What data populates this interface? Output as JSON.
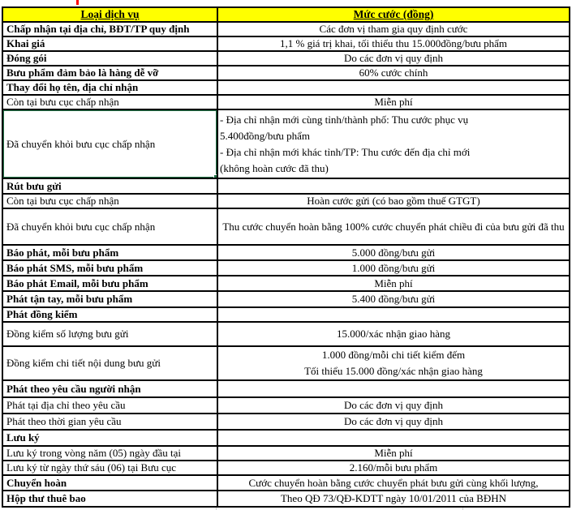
{
  "colors": {
    "header_bg": "#FFFF00",
    "selection_green": "#217346",
    "grid_black": "#000000",
    "red_mark": "#FF0000",
    "faint_grid": "#D0D0D0"
  },
  "table": {
    "columns": [
      {
        "label": "Loại dịch vụ"
      },
      {
        "label": "Mức cước (đồng)"
      }
    ],
    "rows": [
      {
        "service": "Chấp nhận tại địa chỉ, BĐT/TP quy định",
        "fee": "Các đơn vị tham gia quy định cước",
        "bold": true
      },
      {
        "service": "Khai giá",
        "fee": "1,1 % giá trị khai, tối thiểu thu 15.000đồng/bưu phẩm",
        "bold": true
      },
      {
        "service": "Đóng gói",
        "fee": "Do các đơn vị quy định",
        "bold": true
      },
      {
        "service": "Bưu phẩm đảm bảo là hàng dễ vỡ",
        "fee": "60% cước chính",
        "bold": true
      },
      {
        "service": "Thay đổi họ tên, địa chỉ nhận",
        "fee": "",
        "bold": true
      },
      {
        "service": "Còn tại bưu cục chấp nhận",
        "fee": "Miễn phí",
        "bold": false
      },
      {
        "service": "Đã chuyển khỏi bưu cục chấp nhận",
        "fee": "- Địa chỉ nhận mới cùng tỉnh/thành phố: Thu cước phục vụ\n5.400đồng/bưu phẩm\n- Địa chỉ nhận mới khác tỉnh/TP: Thu cước đến địa chỉ mới\n(không hoàn cước đã thu)",
        "bold": false,
        "fee_align": "left",
        "selected": true
      },
      {
        "service": "Rút bưu gửi",
        "fee": "",
        "bold": true
      },
      {
        "service": "Còn tại bưu cục chấp nhận",
        "fee": "Hoàn cước gửi (có bao gồm thuế GTGT)",
        "bold": false
      },
      {
        "service": "Đã chuyển khỏi bưu cục chấp nhận",
        "fee": "Thu cước chuyển hoàn bằng 100% cước chuyển phát chiều đi của bưu gửi đã thu",
        "bold": false
      },
      {
        "service": "Báo phát, mỗi bưu phẩm",
        "fee": "5.000 đồng/bưu gửi",
        "bold": true
      },
      {
        "service": "Báo phát SMS, mỗi bưu phẩm",
        "fee": "1.000 đồng/bưu gửi",
        "bold": true
      },
      {
        "service": "Báo phát Email, mỗi bưu phẩm",
        "fee": "Miễn phí",
        "bold": true
      },
      {
        "service": "Phát tận tay, mỗi bưu phẩm",
        "fee": "5.400 đồng/bưu gửi",
        "bold": true
      },
      {
        "service": "Phát đồng kiểm",
        "fee": "",
        "bold": true
      },
      {
        "service": "Đồng kiểm số lượng bưu gửi",
        "fee": "15.000/xác nhận giao hàng",
        "bold": false
      },
      {
        "service": "Đồng kiểm chi tiết nội dung bưu gửi",
        "fee": "1.000 đồng/mỗi chi tiết kiểm đếm\nTối thiểu 15.000 đồng/xác nhận giao hàng",
        "bold": false
      },
      {
        "service": "Phát theo yêu cầu người nhận",
        "fee": "",
        "bold": true
      },
      {
        "service": "Phát tại địa chỉ theo yêu cầu",
        "fee": "Do các đơn vị quy định",
        "bold": false
      },
      {
        "service": "Phát theo thời gian yêu cầu",
        "fee": "Do các đơn vị quy định",
        "bold": false
      },
      {
        "service": "Lưu ký",
        "fee": "",
        "bold": true
      },
      {
        "service": "Lưu ký trong vòng năm (05) ngày đầu tại",
        "fee": "Miễn phí",
        "bold": false
      },
      {
        "service": "Lưu ký từ ngày thứ sáu (06) tại Bưu cục",
        "fee": "2.160/mỗi bưu phẩm",
        "bold": false
      },
      {
        "service": "Chuyển hoàn",
        "fee": "Cước chuyển hoàn bằng cước chuyển phát bưu gửi cùng khối lượng,",
        "bold": true
      },
      {
        "service": "Hộp thư thuê bao",
        "fee": "Theo QĐ 73/QĐ-KDTT ngày 10/01/2011 của BĐHN",
        "bold": true
      }
    ]
  }
}
